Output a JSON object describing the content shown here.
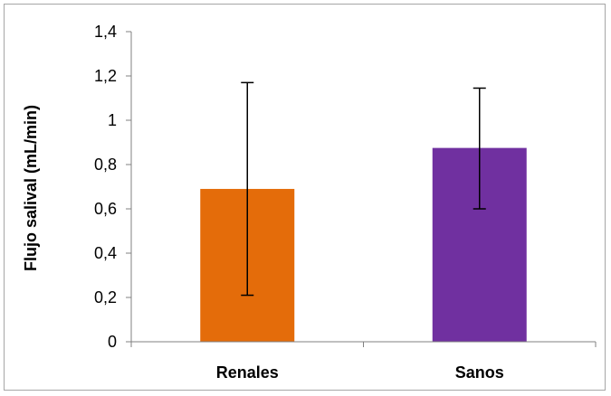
{
  "chart_data": {
    "type": "bar",
    "title": "",
    "xlabel": "",
    "ylabel": "Flujo salival (mL/min)",
    "categories": [
      "Renales",
      "Sanos"
    ],
    "values": [
      0.69,
      0.875
    ],
    "error_low": [
      0.21,
      0.6
    ],
    "error_high": [
      1.17,
      1.145
    ],
    "colors": [
      "#E46C0A",
      "#7030A0"
    ],
    "ylim": [
      0,
      1.4
    ],
    "yticks": [
      0,
      0.2,
      0.4,
      0.6,
      0.8,
      1,
      1.2,
      1.4
    ],
    "ytick_labels": [
      "0",
      "0,2",
      "0,4",
      "0,6",
      "0,8",
      "1",
      "1,2",
      "1,4"
    ],
    "grid": false,
    "legend": "none",
    "axis_color": "#808080",
    "frame_color": "#a6a6a6"
  }
}
